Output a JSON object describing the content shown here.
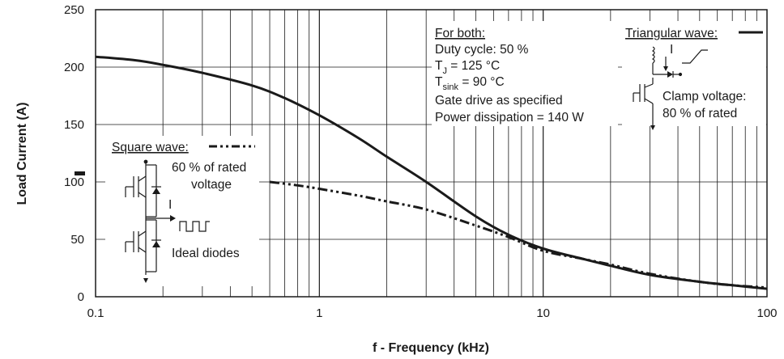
{
  "chart_data": {
    "type": "line",
    "xlabel": "f - Frequency (kHz)",
    "ylabel": "Load Current (A)",
    "xscale": "log",
    "xlim": [
      0.1,
      100
    ],
    "ylim": [
      0,
      250
    ],
    "x_ticks": [
      "0.1",
      "1",
      "10",
      "100"
    ],
    "y_ticks": [
      "0",
      "50",
      "100",
      "150",
      "200",
      "250"
    ],
    "grid": true,
    "series": [
      {
        "name": "Triangular wave",
        "style": "solid",
        "color": "#1a1a1a",
        "points": [
          [
            0.1,
            209
          ],
          [
            0.15,
            206
          ],
          [
            0.2,
            202
          ],
          [
            0.3,
            195
          ],
          [
            0.5,
            184
          ],
          [
            0.7,
            173
          ],
          [
            1,
            158
          ],
          [
            1.5,
            138
          ],
          [
            2,
            122
          ],
          [
            3,
            100
          ],
          [
            5,
            70
          ],
          [
            7,
            54
          ],
          [
            10,
            42
          ],
          [
            15,
            33
          ],
          [
            20,
            27
          ],
          [
            30,
            19
          ],
          [
            50,
            13
          ],
          [
            70,
            10
          ],
          [
            100,
            7
          ]
        ]
      },
      {
        "name": "Square wave",
        "style": "dash-dot-dot",
        "color": "#1a1a1a",
        "points": [
          [
            0.6,
            100
          ],
          [
            0.8,
            97
          ],
          [
            1,
            94
          ],
          [
            1.5,
            88
          ],
          [
            2,
            83
          ],
          [
            3,
            76
          ],
          [
            5,
            62
          ],
          [
            7,
            52
          ],
          [
            10,
            40
          ],
          [
            15,
            33
          ],
          [
            20,
            28
          ],
          [
            30,
            20
          ],
          [
            50,
            13
          ],
          [
            70,
            10
          ],
          [
            100,
            8
          ]
        ]
      }
    ],
    "annotations": {
      "for_both_title": "For both:",
      "duty_cycle": "Duty cycle: 50 %",
      "tj_prefix": "T",
      "tj_sub": "J",
      "tj_value": " = 125 °C",
      "tsink_prefix": "T",
      "tsink_sub": "sink",
      "tsink_value": " = 90 °C",
      "gate_drive": "Gate drive as specified",
      "power_dissipation": "Power dissipation = 140 W",
      "triangular_wave": "Triangular wave:",
      "clamp_voltage_1": "Clamp voltage:",
      "clamp_voltage_2": "80 % of rated",
      "square_wave": "Square wave:",
      "rated_voltage_1": "60 % of rated",
      "rated_voltage_2": "voltage",
      "ideal_diodes": "Ideal diodes",
      "current_label_left": "I",
      "current_label_right": "I"
    }
  }
}
